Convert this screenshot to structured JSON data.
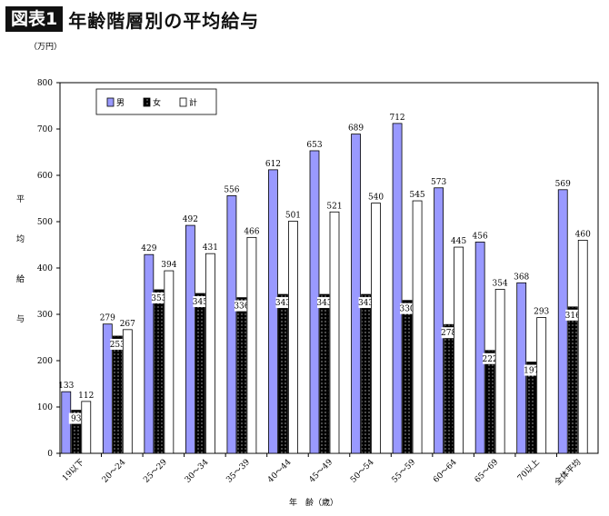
{
  "header": {
    "badge": "図表1",
    "title": "年齢階層別の平均給与"
  },
  "colors": {
    "male": "#9999ff",
    "female": "#000000",
    "total": "#ffffff"
  },
  "chart_data": {
    "type": "bar",
    "unit": "（万円）",
    "ylabel": [
      "平",
      "均",
      "給",
      "与"
    ],
    "xlabel": "年　齢（歳）",
    "ylim": [
      0,
      800
    ],
    "yticks": [
      0,
      100,
      200,
      300,
      400,
      500,
      600,
      700,
      800
    ],
    "legend": {
      "placement": "top-left"
    },
    "categories": [
      "19以下",
      "20～24",
      "25～29",
      "30～34",
      "35～39",
      "40～44",
      "45～49",
      "50～54",
      "55～59",
      "60～64",
      "65～69",
      "70以上",
      "全体平均"
    ],
    "series": [
      {
        "name": "男",
        "values": [
          133,
          279,
          429,
          492,
          556,
          612,
          653,
          689,
          712,
          573,
          456,
          368,
          569
        ]
      },
      {
        "name": "女",
        "values": [
          93,
          253,
          353,
          345,
          336,
          343,
          343,
          343,
          330,
          278,
          222,
          197,
          316
        ]
      },
      {
        "name": "計",
        "values": [
          112,
          267,
          394,
          431,
          466,
          501,
          521,
          540,
          545,
          445,
          354,
          293,
          460
        ]
      }
    ]
  }
}
